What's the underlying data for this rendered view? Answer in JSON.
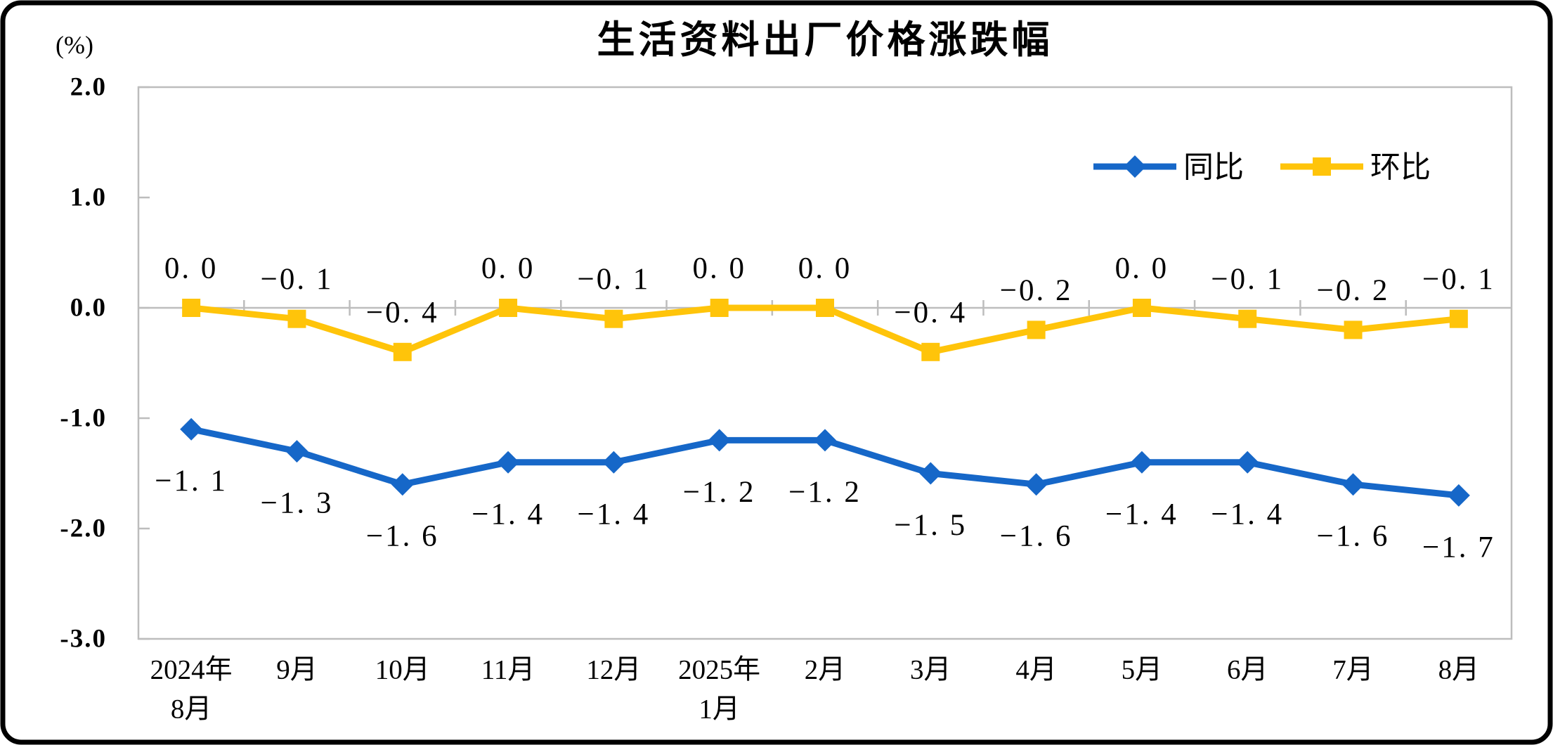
{
  "chart_data": {
    "type": "line",
    "title": "生活资料出厂价格涨跌幅",
    "unit_label": "(%)",
    "ylim": [
      -3.0,
      2.0
    ],
    "yticks": [
      {
        "value": 2.0,
        "label": "2.0"
      },
      {
        "value": 1.0,
        "label": "1.0"
      },
      {
        "value": 0.0,
        "label": "0.0"
      },
      {
        "value": -1.0,
        "label": "-1.0"
      },
      {
        "value": -2.0,
        "label": "-2.0"
      },
      {
        "value": -3.0,
        "label": "-3.0"
      }
    ],
    "categories": [
      "2024年8月",
      "9月",
      "10月",
      "11月",
      "12月",
      "2025年1月",
      "2月",
      "3月",
      "4月",
      "5月",
      "6月",
      "7月",
      "8月"
    ],
    "category_lines": [
      [
        "2024年",
        "8月"
      ],
      [
        "9月"
      ],
      [
        "10月"
      ],
      [
        "11月"
      ],
      [
        "12月"
      ],
      [
        "2025年",
        "1月"
      ],
      [
        "2月"
      ],
      [
        "3月"
      ],
      [
        "4月"
      ],
      [
        "5月"
      ],
      [
        "6月"
      ],
      [
        "7月"
      ],
      [
        "8月"
      ]
    ],
    "grid": "zero-axis-only",
    "legend_position": "top-right-inside",
    "axis_color": "#BDBDBD",
    "series": [
      {
        "name": "同比",
        "color": "#1667C8",
        "marker": "diamond",
        "label_position": "below",
        "values": [
          -1.1,
          -1.3,
          -1.6,
          -1.4,
          -1.4,
          -1.2,
          -1.2,
          -1.5,
          -1.6,
          -1.4,
          -1.4,
          -1.6,
          -1.7
        ],
        "labels": [
          "−1. 1",
          "−1. 3",
          "−1. 6",
          "−1. 4",
          "−1. 4",
          "−1. 2",
          "−1. 2",
          "−1. 5",
          "−1. 6",
          "−1. 4",
          "−1. 4",
          "−1. 6",
          "−1. 7"
        ]
      },
      {
        "name": "环比",
        "color": "#FFC40A",
        "marker": "square",
        "label_position": "above",
        "values": [
          0.0,
          -0.1,
          -0.4,
          0.0,
          -0.1,
          0.0,
          0.0,
          -0.4,
          -0.2,
          0.0,
          -0.1,
          -0.2,
          -0.1
        ],
        "labels": [
          "0. 0",
          "−0. 1",
          "−0. 4",
          "0. 0",
          "−0. 1",
          "0. 0",
          "0. 0",
          "−0. 4",
          "−0. 2",
          "0. 0",
          "−0. 1",
          "−0. 2",
          "−0. 1"
        ]
      }
    ]
  }
}
